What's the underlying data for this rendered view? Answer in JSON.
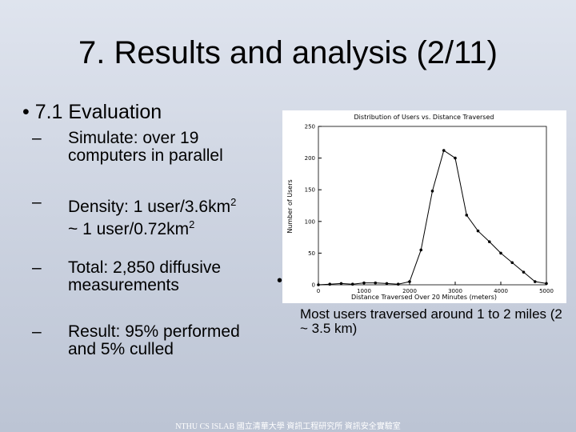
{
  "slide": {
    "title": "7. Results and analysis (2/11)",
    "bullet": "7.1 Evaluation",
    "sub_bullets": [
      {
        "dash": "–",
        "parts": [
          "Simulate: over 19 computers in parallel"
        ]
      },
      {
        "dash": "–",
        "parts": [
          "Density: 1 user/3.6km",
          "2",
          " ~ 1 user/0.72km",
          "2"
        ]
      },
      {
        "dash": "–",
        "parts": [
          "Total: 2,850 diffusive measurements"
        ]
      },
      {
        "dash": "–",
        "parts": [
          "Result: 95% performed and 5% culled"
        ]
      }
    ],
    "caption": "Most users traversed around 1 to 2 miles (2 ~ 3.5 km)",
    "footer": "NTHU CS ISLAB 國立清華大學 資訊工程研究所 資訊安全實驗室"
  },
  "chart_data": {
    "type": "line",
    "title": "Distribution of Users vs. Distance Traversed",
    "x_label": "Distance Traversed Over 20 Minutes (meters)",
    "y_label": "Number of Users",
    "x": [
      0,
      250,
      500,
      750,
      1000,
      1250,
      1500,
      1750,
      2000,
      2250,
      2500,
      2750,
      3000,
      3250,
      3500,
      3750,
      4000,
      4250,
      4500,
      4750,
      5000
    ],
    "series": [
      {
        "name": "Users",
        "color": "#000000",
        "values": [
          0,
          1,
          2,
          1,
          3,
          3,
          2,
          1,
          5,
          55,
          148,
          212,
          200,
          110,
          85,
          68,
          50,
          35,
          20,
          5,
          2
        ]
      }
    ],
    "xlim": [
      0,
      5000
    ],
    "xticks": [
      0,
      1000,
      2000,
      3000,
      4000,
      5000
    ],
    "ylim": [
      0,
      250
    ],
    "yticks": [
      0,
      50,
      100,
      150,
      200,
      250
    ]
  }
}
